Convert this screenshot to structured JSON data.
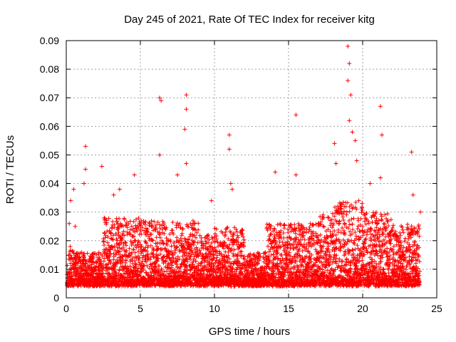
{
  "chart_data": {
    "type": "scatter",
    "title": "Day 245 of 2021, Rate Of TEC Index for receiver kitg",
    "xlabel": "GPS time / hours",
    "ylabel": "ROTI / TECUs",
    "xlim": [
      0,
      25
    ],
    "ylim": [
      0,
      0.09
    ],
    "x_ticks": [
      "0",
      "5",
      "10",
      "15",
      "20",
      "25"
    ],
    "y_ticks": [
      "0",
      "0.01",
      "0.02",
      "0.03",
      "0.04",
      "0.05",
      "0.06",
      "0.07",
      "0.08",
      "0.09"
    ],
    "grid": true,
    "marker": "+",
    "color": "#ff0000",
    "series": [
      {
        "name": "ROTI",
        "note": "dense band approx 0.003-0.02 TECU across 0-24 h; notable spikes listed",
        "x": [
          0.2,
          0.3,
          0.5,
          0.6,
          1.3,
          1.3,
          1.2,
          2.4,
          3.2,
          3.6,
          4.6,
          6.3,
          6.4,
          6.3,
          7.5,
          8.1,
          8.1,
          8.0,
          8.1,
          9.8,
          11.0,
          11.0,
          11.1,
          11.2,
          14.1,
          15.5,
          15.5,
          18.1,
          18.2,
          19.0,
          19.1,
          19.0,
          19.2,
          19.1,
          19.3,
          19.5,
          19.6,
          20.5,
          21.2,
          21.3,
          21.2,
          23.3,
          23.4,
          23.9
        ],
        "y": [
          0.026,
          0.034,
          0.038,
          0.025,
          0.053,
          0.045,
          0.04,
          0.046,
          0.036,
          0.038,
          0.043,
          0.07,
          0.069,
          0.05,
          0.043,
          0.071,
          0.066,
          0.059,
          0.047,
          0.034,
          0.057,
          0.052,
          0.04,
          0.038,
          0.044,
          0.064,
          0.043,
          0.054,
          0.047,
          0.088,
          0.082,
          0.076,
          0.071,
          0.062,
          0.058,
          0.055,
          0.048,
          0.04,
          0.067,
          0.057,
          0.042,
          0.051,
          0.036,
          0.03
        ]
      }
    ]
  }
}
